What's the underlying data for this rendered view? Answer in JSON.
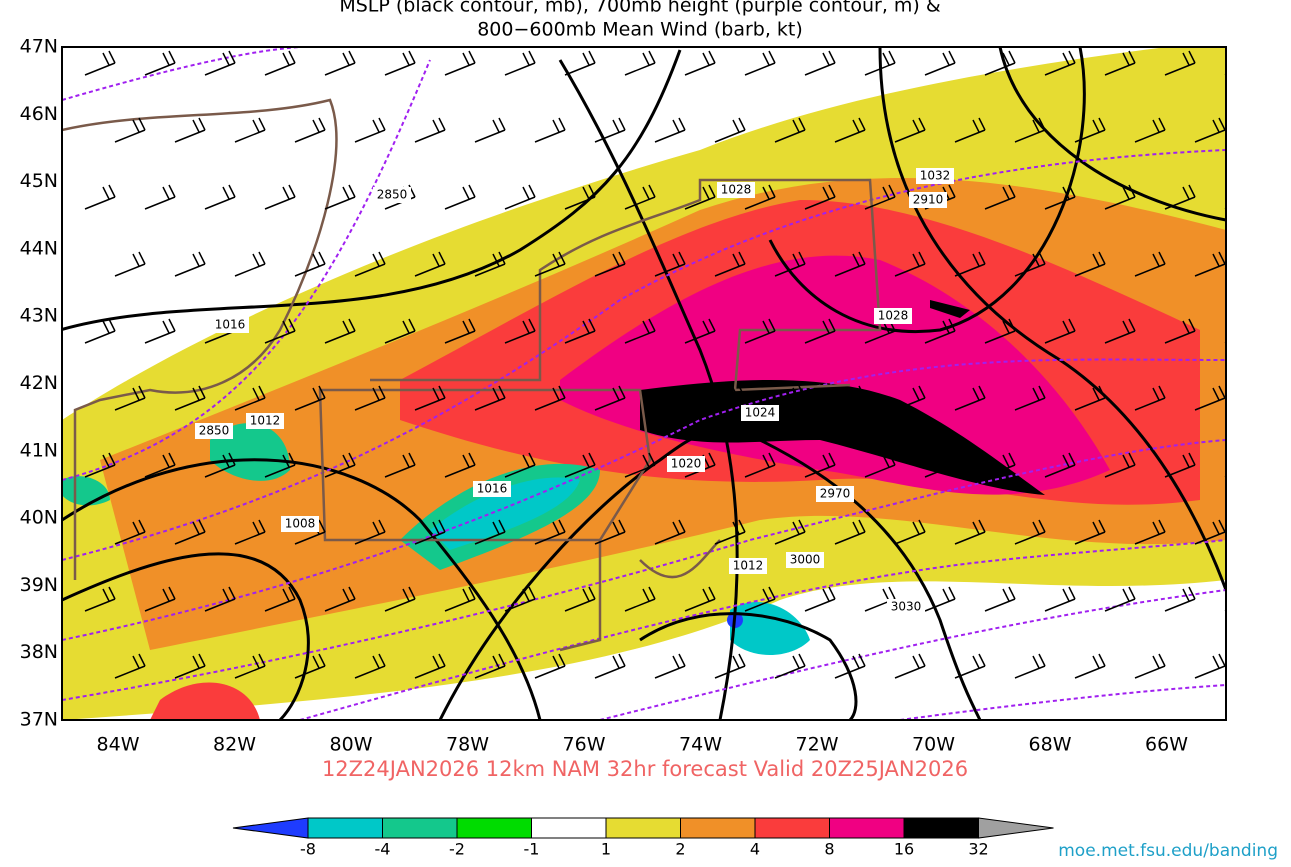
{
  "header": {
    "title_line1": "MSLP (black contour, mb), 700mb height (purple contour, m) &",
    "title_line2": "800−600mb Mean Wind (barb, kt)"
  },
  "map": {
    "lat_labels": [
      "47N",
      "46N",
      "45N",
      "44N",
      "43N",
      "42N",
      "41N",
      "40N",
      "39N",
      "38N",
      "37N"
    ],
    "lon_labels": [
      "84W",
      "82W",
      "80W",
      "78W",
      "76W",
      "74W",
      "72W",
      "70W",
      "68W",
      "66W"
    ],
    "contour_labels": [
      "2850",
      "1028",
      "1032",
      "2910",
      "1028",
      "1016",
      "1012",
      "2850",
      "1024",
      "1020",
      "1016",
      "2970",
      "1008",
      "1012",
      "3000",
      "3030"
    ]
  },
  "footer": {
    "valid": "12Z24JAN2026 12km NAM 32hr forecast Valid 20Z25JAN2026",
    "credit": "moe.met.fsu.edu/banding"
  },
  "colorbar": {
    "ticks": [
      -8,
      -4,
      -2,
      -1,
      1,
      2,
      4,
      8,
      16,
      32
    ],
    "colors": [
      "#1e3cff",
      "#00c8c8",
      "#14c88c",
      "#00dc00",
      "#ffffff",
      "#e6dc32",
      "#f09028",
      "#fa3c3c",
      "#f00082",
      "#000000",
      "#a0a0a0"
    ]
  }
}
